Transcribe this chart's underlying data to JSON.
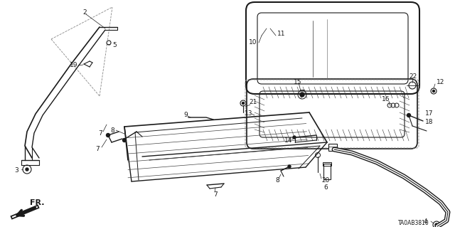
{
  "background_color": "#ffffff",
  "diagram_code": "TA0AB3810",
  "line_color": "#1a1a1a",
  "text_color": "#1a1a1a",
  "label_fontsize": 6.5,
  "fig_width": 6.4,
  "fig_height": 3.19,
  "dpi": 100
}
